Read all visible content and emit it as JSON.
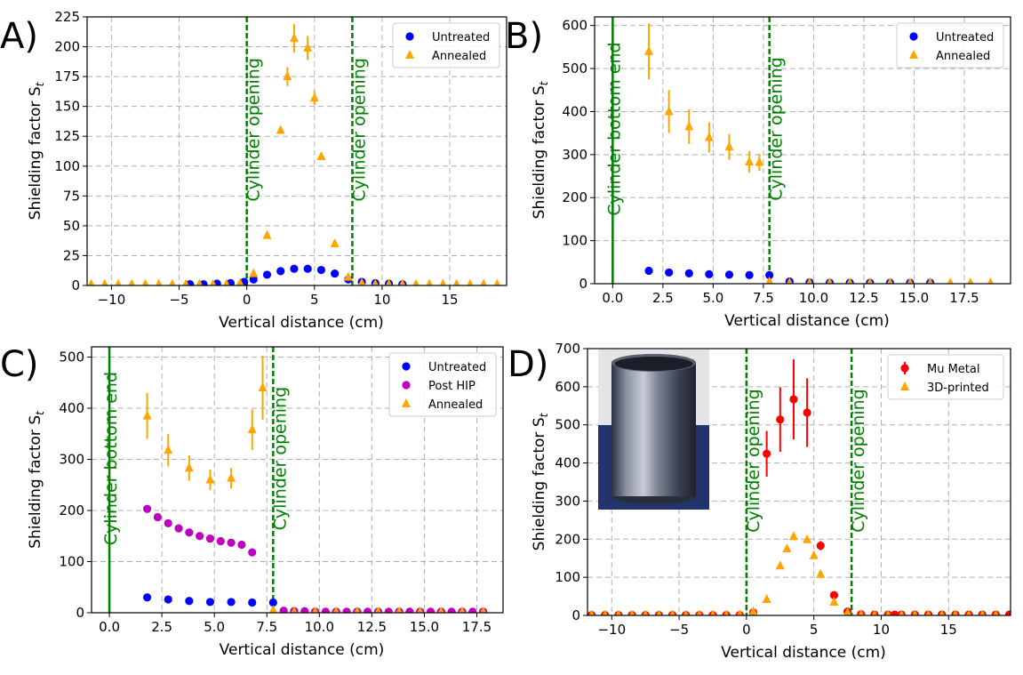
{
  "chart_data": [
    {
      "type": "scatter",
      "panel_label": "A)",
      "xlabel": "Vertical distance (cm)",
      "ylabel": "Shielding factor S",
      "ylabel_sub": "t",
      "xlim": [
        -11.8,
        19.2
      ],
      "ylim": [
        0,
        225
      ],
      "xticks": [
        -10,
        -5,
        0,
        5,
        10,
        15
      ],
      "xtick_labels": [
        "−10",
        "−5",
        "0",
        "5",
        "10",
        "15"
      ],
      "yticks": [
        0,
        25,
        50,
        75,
        100,
        125,
        150,
        175,
        200,
        225
      ],
      "ytick_labels": [
        "0",
        "25",
        "50",
        "75",
        "100",
        "125",
        "150",
        "175",
        "200",
        "225"
      ],
      "vlines": [
        {
          "x": 0,
          "style": "dashed",
          "label": "Cylinder opening"
        },
        {
          "x": 7.8,
          "style": "dashed",
          "label": "Cylinder opening"
        }
      ],
      "legend": "top-right",
      "series": [
        {
          "name": "Untreated",
          "marker": "circle",
          "color": "#0000ff",
          "x": [
            -4.2,
            -3.2,
            -2.2,
            -1.2,
            -0.2,
            0.5,
            1.5,
            2.5,
            3.5,
            4.5,
            5.5,
            6.5,
            7.5,
            8.5,
            9.5,
            10.5,
            11.5
          ],
          "y": [
            1,
            1,
            1.5,
            2,
            3,
            5,
            9,
            12,
            14,
            14,
            13,
            10,
            5,
            3,
            2,
            1.5,
            1
          ]
        },
        {
          "name": "Annealed",
          "marker": "triangle",
          "color": "#ffa500",
          "x": [
            -11.5,
            -10.5,
            -9.5,
            -8.5,
            -7.5,
            -6.5,
            -5.5,
            -4.5,
            -3.5,
            -2.5,
            -1.5,
            -0.5,
            0.5,
            1.5,
            2.5,
            3.0,
            3.5,
            4.5,
            5.0,
            5.5,
            6.5,
            7.5,
            8.5,
            9.5,
            10.5,
            11.5,
            12.5,
            13.5,
            14.5,
            15.5,
            16.5,
            17.5,
            18.5
          ],
          "y": [
            1,
            1,
            1,
            1,
            1,
            1,
            1,
            1,
            1,
            1,
            1,
            2,
            10,
            42,
            130,
            175,
            207,
            199,
            157,
            108,
            35,
            7,
            2,
            1,
            1,
            1,
            1,
            1,
            1,
            1,
            1,
            1,
            1
          ],
          "err": [
            0,
            0,
            0,
            0,
            0,
            0,
            0,
            0,
            0,
            0,
            0,
            0,
            0,
            0,
            0,
            8,
            12,
            10,
            6,
            0,
            0,
            0,
            0,
            0,
            0,
            0,
            0,
            0,
            0,
            0,
            0,
            0,
            0
          ]
        }
      ]
    },
    {
      "type": "scatter",
      "panel_label": "B)",
      "xlabel": "Vertical distance (cm)",
      "ylabel": "Shielding factor S",
      "ylabel_sub": "t",
      "xlim": [
        -0.9,
        19.8
      ],
      "ylim": [
        0,
        620
      ],
      "xticks": [
        0,
        2.5,
        5,
        7.5,
        10,
        12.5,
        15,
        17.5
      ],
      "xtick_labels": [
        "0.0",
        "2.5",
        "5.0",
        "7.5",
        "10.0",
        "12.5",
        "15.0",
        "17.5"
      ],
      "yticks": [
        0,
        100,
        200,
        300,
        400,
        500,
        600
      ],
      "ytick_labels": [
        "0",
        "100",
        "200",
        "300",
        "400",
        "500",
        "600"
      ],
      "vlines": [
        {
          "x": 0,
          "style": "solid",
          "label": "Cylinder bottom end"
        },
        {
          "x": 7.8,
          "style": "dashed",
          "label": "Cylinder opening"
        }
      ],
      "legend": "top-right",
      "series": [
        {
          "name": "Untreated",
          "marker": "circle",
          "color": "#0000ff",
          "x": [
            1.8,
            2.8,
            3.8,
            4.8,
            5.8,
            6.8,
            7.8,
            8.8,
            9.8,
            10.8,
            11.8,
            12.8,
            13.8,
            14.8,
            15.8
          ],
          "y": [
            30,
            26,
            24,
            22,
            21,
            20,
            20,
            5,
            3,
            2,
            2,
            2,
            2,
            2,
            2
          ]
        },
        {
          "name": "Annealed",
          "marker": "triangle",
          "color": "#ffa500",
          "x": [
            1.8,
            2.8,
            3.8,
            4.8,
            5.8,
            6.8,
            7.3,
            7.8,
            8.8,
            9.8,
            10.8,
            11.8,
            12.8,
            13.8,
            14.8,
            15.8,
            16.8,
            17.8,
            18.8
          ],
          "y": [
            540,
            400,
            365,
            340,
            318,
            283,
            282,
            5,
            2,
            2,
            2,
            2,
            2,
            2,
            2,
            2,
            2,
            2,
            2
          ],
          "err": [
            65,
            50,
            40,
            35,
            30,
            25,
            20,
            0,
            0,
            0,
            0,
            0,
            0,
            0,
            0,
            0,
            0,
            0,
            0
          ]
        }
      ]
    },
    {
      "type": "scatter",
      "panel_label": "C)",
      "xlabel": "Vertical distance (cm)",
      "ylabel": "Shielding factor S",
      "ylabel_sub": "t",
      "xlim": [
        -0.85,
        18.75
      ],
      "ylim": [
        0,
        520
      ],
      "xticks": [
        0,
        2.5,
        5,
        7.5,
        10,
        12.5,
        15,
        17.5
      ],
      "xtick_labels": [
        "0.0",
        "2.5",
        "5.0",
        "7.5",
        "10.0",
        "12.5",
        "15.0",
        "17.5"
      ],
      "yticks": [
        0,
        100,
        200,
        300,
        400,
        500
      ],
      "ytick_labels": [
        "0",
        "100",
        "200",
        "300",
        "400",
        "500"
      ],
      "vlines": [
        {
          "x": 0,
          "style": "solid",
          "label": "Cylinder bottom end"
        },
        {
          "x": 7.8,
          "style": "dashed",
          "label": "Cylinder opening"
        }
      ],
      "legend": "top-right",
      "series": [
        {
          "name": "Untreated",
          "marker": "circle",
          "color": "#0000ff",
          "x": [
            1.8,
            2.8,
            3.8,
            4.8,
            5.8,
            6.8,
            7.8,
            8.8,
            9.8,
            10.8,
            11.8,
            12.8,
            13.8,
            14.8,
            15.8,
            16.8,
            17.8
          ],
          "y": [
            30,
            26,
            23,
            21,
            21,
            20,
            20,
            3,
            2,
            2,
            2,
            2,
            2,
            2,
            2,
            2,
            2
          ]
        },
        {
          "name": "Post HIP",
          "marker": "circle",
          "color": "#bf00bf",
          "x": [
            1.8,
            2.3,
            2.8,
            3.3,
            3.8,
            4.3,
            4.8,
            5.3,
            5.8,
            6.3,
            6.8,
            8.3,
            8.8,
            9.3,
            9.8,
            10.3,
            10.8,
            11.3,
            11.8,
            12.3,
            12.8,
            13.3,
            13.8,
            14.3,
            14.8,
            15.3,
            15.8,
            16.3,
            16.8,
            17.3,
            17.8
          ],
          "y": [
            203,
            187,
            175,
            165,
            157,
            150,
            145,
            140,
            137,
            133,
            118,
            4,
            3,
            3,
            2,
            2,
            2,
            2,
            2,
            2,
            2,
            2,
            2,
            2,
            2,
            2,
            2,
            2,
            2,
            2,
            2
          ]
        },
        {
          "name": "Annealed",
          "marker": "triangle",
          "color": "#ffa500",
          "x": [
            1.8,
            2.8,
            3.8,
            4.8,
            5.8,
            6.8,
            7.3,
            7.8,
            8.8,
            9.8,
            10.8,
            11.8,
            12.8,
            13.8,
            14.8,
            15.8,
            16.8,
            17.8
          ],
          "y": [
            385,
            318,
            283,
            260,
            263,
            358,
            440,
            5,
            2,
            2,
            2,
            2,
            2,
            2,
            2,
            2,
            2,
            2
          ],
          "err": [
            45,
            32,
            25,
            20,
            20,
            40,
            63,
            0,
            0,
            0,
            0,
            0,
            0,
            0,
            0,
            0,
            0,
            0
          ]
        }
      ]
    },
    {
      "type": "scatter",
      "panel_label": "D)",
      "xlabel": "Vertical distance (cm)",
      "ylabel": "Shielding factor S",
      "ylabel_sub": "t",
      "xlim": [
        -11.8,
        19.6
      ],
      "ylim": [
        0,
        700
      ],
      "xticks": [
        -10,
        -5,
        0,
        5,
        10,
        15
      ],
      "xtick_labels": [
        "−10",
        "−5",
        "0",
        "5",
        "10",
        "15"
      ],
      "yticks": [
        0,
        100,
        200,
        300,
        400,
        500,
        600,
        700
      ],
      "ytick_labels": [
        "0",
        "100",
        "200",
        "300",
        "400",
        "500",
        "600",
        "700"
      ],
      "vlines": [
        {
          "x": 0,
          "style": "dashed",
          "label": "Cylinder opening"
        },
        {
          "x": 7.8,
          "style": "dashed",
          "label": "Cylinder opening"
        }
      ],
      "legend": "top-right",
      "inset_photo": "cylinder-photo",
      "series": [
        {
          "name": "Mu Metal",
          "marker": "circle",
          "color": "#ff0000",
          "x": [
            -11.5,
            -10.5,
            -9.5,
            -8.5,
            -7.5,
            -6.5,
            -5.5,
            -4.5,
            -3.5,
            -2.5,
            -1.5,
            -0.5,
            0.5,
            1.5,
            2.5,
            3.5,
            4.5,
            5.5,
            6.5,
            7.5,
            8.5,
            9.5,
            10.5,
            11.0,
            11.5,
            12.5,
            13.5,
            14.5,
            15.5,
            16.5,
            17.5,
            18.5,
            19.5
          ],
          "y": [
            1,
            1,
            1,
            1,
            1,
            1,
            1,
            1,
            1,
            1,
            1,
            1,
            8,
            424,
            514,
            567,
            532,
            183,
            53,
            10,
            3,
            2,
            2,
            2,
            2,
            2,
            2,
            2,
            2,
            2,
            2,
            2,
            2
          ],
          "err": [
            0,
            0,
            0,
            0,
            0,
            0,
            0,
            0,
            0,
            0,
            0,
            0,
            0,
            60,
            85,
            105,
            90,
            12,
            0,
            0,
            0,
            0,
            0,
            0,
            0,
            0,
            0,
            0,
            0,
            0,
            0,
            0,
            0
          ]
        },
        {
          "name": "3D-printed",
          "marker": "triangle",
          "color": "#ffa500",
          "x": [
            -11.5,
            -10.5,
            -9.5,
            -8.5,
            -7.5,
            -6.5,
            -5.5,
            -4.5,
            -3.5,
            -2.5,
            -1.5,
            -0.5,
            0.5,
            1.5,
            2.5,
            3.0,
            3.5,
            4.5,
            5.0,
            5.5,
            6.5,
            7.5,
            8.5,
            9.5,
            10.5,
            11.5,
            12.5,
            13.5,
            14.5,
            15.5,
            16.5,
            17.5,
            18.5
          ],
          "y": [
            1,
            1,
            1,
            1,
            1,
            1,
            1,
            1,
            1,
            1,
            1,
            2,
            10,
            42,
            130,
            175,
            207,
            199,
            157,
            108,
            35,
            7,
            2,
            1,
            1,
            1,
            1,
            1,
            1,
            1,
            1,
            1,
            1
          ]
        }
      ]
    }
  ],
  "colors": {
    "untreated": "#0000ff",
    "annealed": "#ffa500",
    "post_hip": "#bf00bf",
    "mu_metal": "#ff0000",
    "vline": "#008000",
    "grid": "#b0b0b0"
  }
}
